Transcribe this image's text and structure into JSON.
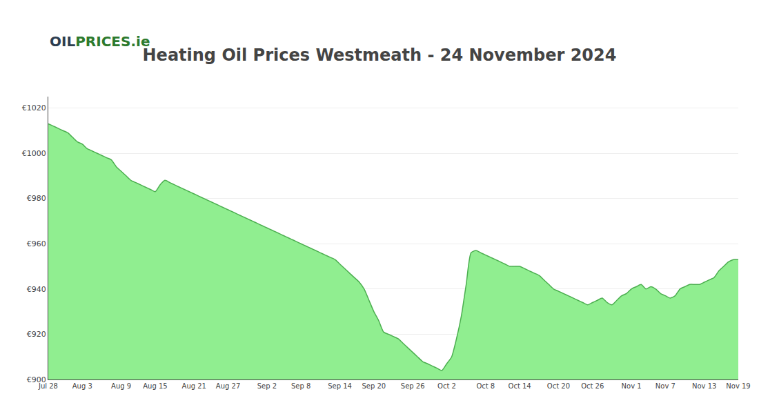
{
  "chart_data": {
    "type": "area",
    "title": "Heating Oil Prices Westmeath - 24 November 2024",
    "annotations": [
      {
        "text": "OIL",
        "color": "#2d3e50"
      },
      {
        "text": "PRICES.ie",
        "color": "#2d7a2d"
      }
    ],
    "categories": [
      "Jul 28",
      null,
      null,
      null,
      null,
      null,
      null,
      "Aug 3",
      null,
      null,
      null,
      null,
      null,
      null,
      null,
      "Aug 9",
      null,
      null,
      null,
      null,
      null,
      null,
      "Aug 15",
      null,
      null,
      null,
      null,
      null,
      null,
      null,
      "Aug 21",
      null,
      null,
      null,
      null,
      null,
      null,
      "Aug 27",
      null,
      null,
      null,
      null,
      null,
      null,
      null,
      "Sep 2",
      null,
      null,
      null,
      null,
      null,
      null,
      "Sep 8",
      null,
      null,
      null,
      null,
      null,
      null,
      null,
      "Sep 14",
      null,
      null,
      null,
      null,
      null,
      null,
      "Sep 20",
      null,
      null,
      null,
      null,
      null,
      null,
      null,
      "Sep 26",
      null,
      null,
      null,
      null,
      null,
      null,
      "Oct 2",
      null,
      null,
      null,
      null,
      null,
      null,
      null,
      "Oct 8",
      null,
      null,
      null,
      null,
      null,
      null,
      "Oct 14",
      null,
      null,
      null,
      null,
      null,
      null,
      null,
      "Oct 20",
      null,
      null,
      null,
      null,
      null,
      null,
      "Oct 26",
      null,
      null,
      null,
      null,
      null,
      null,
      null,
      "Nov 1",
      null,
      null,
      null,
      null,
      null,
      null,
      "Nov 7",
      null,
      null,
      null,
      null,
      null,
      null,
      null,
      "Nov 13",
      null,
      null,
      null,
      null,
      null,
      null,
      "Nov 19"
    ],
    "values": [
      1013,
      1012,
      1011,
      1010,
      1009,
      1007,
      1005,
      1004,
      1002,
      1001,
      1000,
      999,
      998,
      997,
      994,
      992,
      990,
      988,
      987,
      986,
      985,
      984,
      983,
      986,
      988,
      987,
      986,
      985,
      984,
      983,
      982,
      981,
      980,
      979,
      978,
      977,
      976,
      975,
      974,
      973,
      972,
      971,
      970,
      969,
      968,
      967,
      966,
      965,
      964,
      963,
      962,
      961,
      960,
      959,
      958,
      957,
      956,
      955,
      954,
      953,
      951,
      949,
      947,
      945,
      943,
      940,
      935,
      930,
      926,
      921,
      920,
      919,
      918,
      916,
      914,
      912,
      910,
      908,
      907,
      906,
      905,
      904,
      907,
      910,
      918,
      928,
      942,
      956,
      957,
      956,
      955,
      954,
      953,
      952,
      951,
      950,
      950,
      950,
      949,
      948,
      947,
      946,
      944,
      942,
      940,
      939,
      938,
      937,
      936,
      935,
      934,
      933,
      934,
      935,
      936,
      934,
      933,
      935,
      937,
      938,
      940,
      941,
      942,
      940,
      941,
      940,
      938,
      937,
      936,
      937,
      940,
      941,
      942,
      942,
      942,
      943,
      944,
      945,
      948,
      950,
      952,
      953,
      953
    ],
    "color": "#90EE90",
    "line_color": "#4CAF50",
    "ylim": [
      900,
      1025
    ],
    "yticks": [
      {
        "value": 900,
        "label": "€900"
      },
      {
        "value": 920,
        "label": "€920"
      },
      {
        "value": 940,
        "label": "€940"
      },
      {
        "value": 960,
        "label": "€960"
      },
      {
        "value": 980,
        "label": "€980"
      },
      {
        "value": 1000,
        "label": "€1000"
      },
      {
        "value": 1020,
        "label": "€1020"
      }
    ],
    "grid": true
  }
}
